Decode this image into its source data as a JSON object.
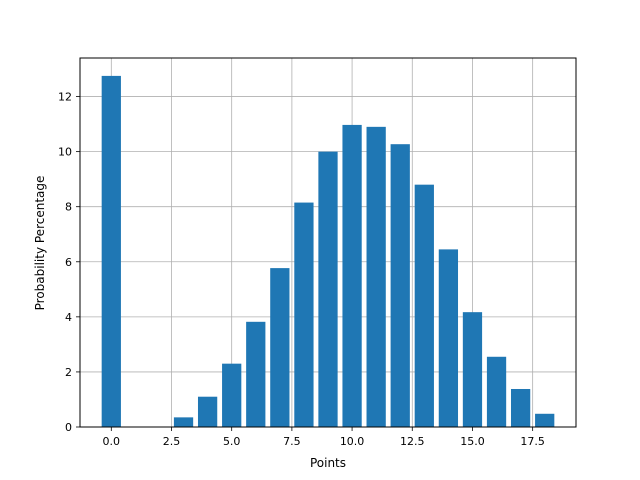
{
  "chart_data": {
    "type": "bar",
    "title": "",
    "xlabel": "Points",
    "ylabel": "Probability Percentage",
    "x": [
      0,
      3,
      4,
      5,
      6,
      7,
      8,
      9,
      10,
      11,
      12,
      13,
      14,
      15,
      16,
      17,
      18
    ],
    "values": [
      12.75,
      0.35,
      1.1,
      2.3,
      3.82,
      5.77,
      8.15,
      10.0,
      10.97,
      10.9,
      10.27,
      8.8,
      6.45,
      4.17,
      2.55,
      1.38,
      0.48
    ],
    "bar_width": 0.8,
    "xlim": [
      -1.3,
      19.3
    ],
    "ylim": [
      0,
      13.4
    ],
    "xticks": [
      0,
      2.5,
      5,
      7.5,
      10,
      12.5,
      15,
      17.5
    ],
    "xtick_labels": [
      "0.0",
      "2.5",
      "5.0",
      "7.5",
      "10.0",
      "12.5",
      "15.0",
      "17.5"
    ],
    "yticks": [
      0,
      2,
      4,
      6,
      8,
      10,
      12
    ],
    "ytick_labels": [
      "0",
      "2",
      "4",
      "6",
      "8",
      "10",
      "12"
    ],
    "grid": true,
    "bar_color": "#1f77b4"
  }
}
